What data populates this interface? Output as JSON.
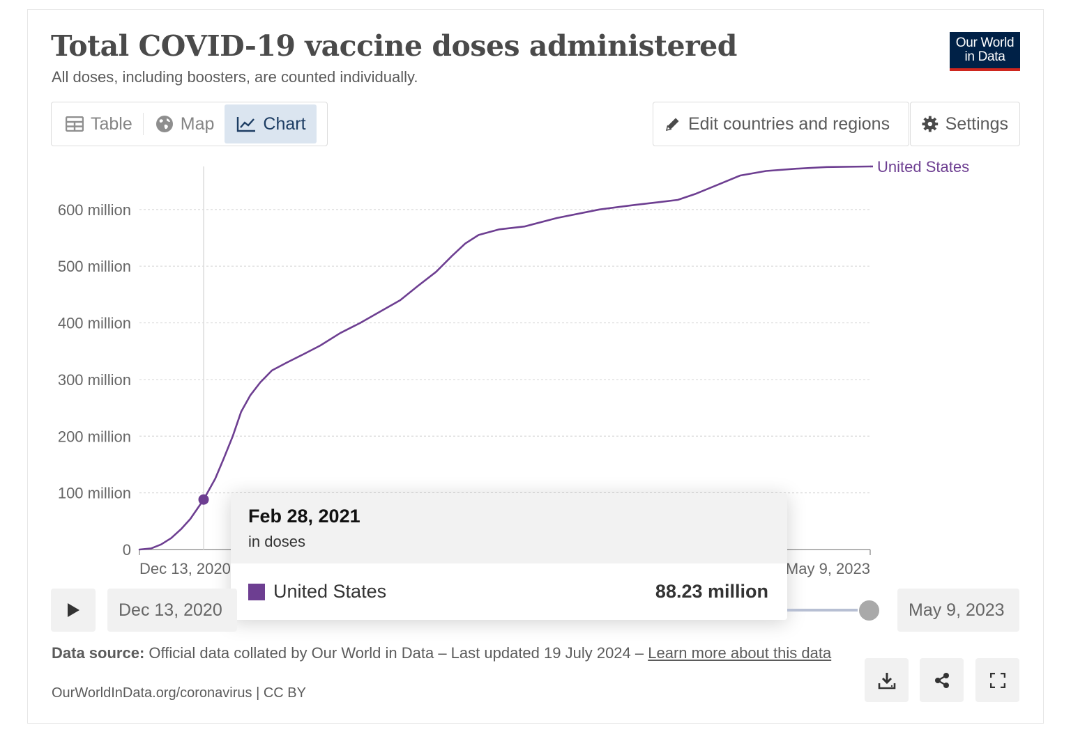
{
  "header": {
    "title": "Total COVID-19 vaccine doses administered",
    "subtitle": "All doses, including boosters, are counted individually.",
    "logo_line1": "Our World",
    "logo_line2": "in Data"
  },
  "tabs": [
    {
      "label": "Table",
      "icon": "table-icon",
      "active": false
    },
    {
      "label": "Map",
      "icon": "globe-icon",
      "active": false
    },
    {
      "label": "Chart",
      "icon": "line-chart-icon",
      "active": true
    }
  ],
  "toolbar": {
    "edit_label": "Edit countries and regions",
    "settings_label": "Settings"
  },
  "colors": {
    "series": "#6d3e91",
    "accent": "#1d3d63",
    "logo_bg": "#002147",
    "logo_stripe": "#ce261e"
  },
  "chart_data": {
    "type": "line",
    "title": "Total COVID-19 vaccine doses administered",
    "subtitle": "All doses, including boosters, are counted individually.",
    "y_tick_labels": [
      "0",
      "100 million",
      "200 million",
      "300 million",
      "400 million",
      "500 million",
      "600 million"
    ],
    "y_ticks": [
      0,
      100,
      200,
      300,
      400,
      500,
      600
    ],
    "y_unit_scale": 1000000,
    "ylim": [
      0,
      676
    ],
    "xlim": [
      "2020-12-13",
      "2023-05-09"
    ],
    "x_tick_labels": {
      "start": "Dec 13, 2020",
      "end": "May 9, 2023"
    },
    "grid": true,
    "series": [
      {
        "name": "United States",
        "color": "#6d3e91",
        "x": [
          "2020-12-13",
          "2020-12-27",
          "2021-01-08",
          "2021-01-20",
          "2021-02-01",
          "2021-02-12",
          "2021-02-28",
          "2021-03-14",
          "2021-03-24",
          "2021-04-04",
          "2021-04-14",
          "2021-04-25",
          "2021-05-07",
          "2021-05-21",
          "2021-06-08",
          "2021-06-27",
          "2021-07-18",
          "2021-08-11",
          "2021-09-04",
          "2021-09-28",
          "2021-10-22",
          "2021-11-12",
          "2021-12-04",
          "2021-12-23",
          "2022-01-08",
          "2022-01-24",
          "2022-02-18",
          "2022-03-20",
          "2022-04-28",
          "2022-06-18",
          "2022-07-30",
          "2022-08-28",
          "2022-09-20",
          "2022-10-12",
          "2022-11-06",
          "2022-12-04",
          "2023-01-04",
          "2023-02-08",
          "2023-03-18",
          "2023-05-09"
        ],
        "values": [
          0,
          2,
          9,
          20,
          36,
          54,
          88,
          125,
          160,
          200,
          243,
          272,
          295,
          316,
          330,
          344,
          360,
          382,
          400,
          420,
          440,
          465,
          490,
          518,
          540,
          555,
          565,
          570,
          585,
          600,
          608,
          613,
          617,
          628,
          643,
          660,
          668,
          672,
          675,
          676
        ]
      }
    ],
    "highlight": {
      "x": "2021-02-28",
      "y": 88.23
    },
    "series_label": "United States"
  },
  "tooltip": {
    "date": "Feb 28, 2021",
    "unit": "in doses",
    "entity": "United States",
    "value": "88.23 million"
  },
  "timeline": {
    "start_label": "Dec 13, 2020",
    "end_label": "May 9, 2023"
  },
  "footer": {
    "source_label": "Data source:",
    "source_text": " Official data collated by Our World in Data – Last updated 19 July 2024 – ",
    "learn_more": "Learn more about this data",
    "url_line": "OurWorldInData.org/coronavirus | CC BY"
  }
}
